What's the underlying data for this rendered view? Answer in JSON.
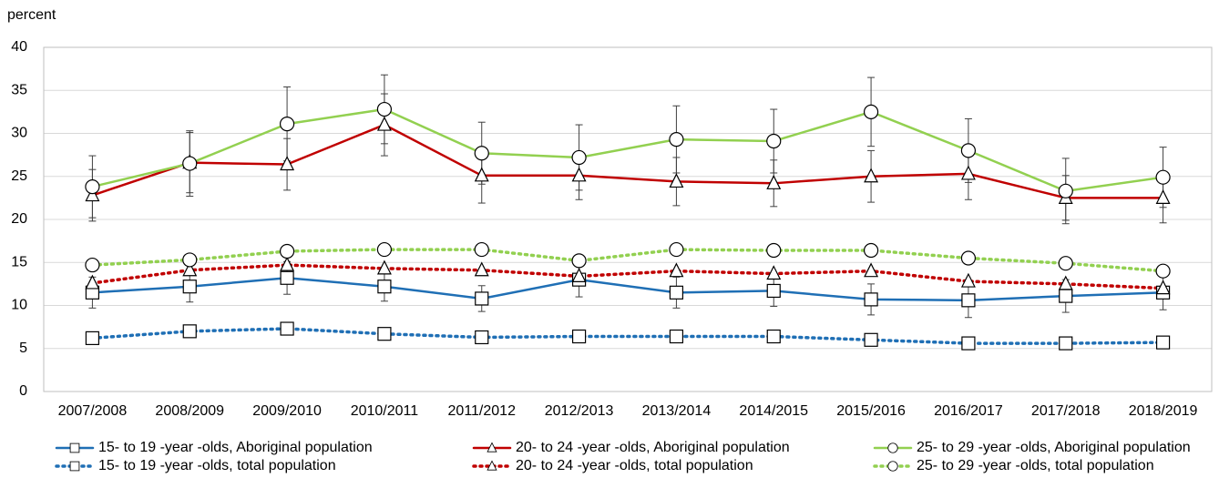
{
  "chart_data": {
    "type": "line",
    "y_label": "percent",
    "categories": [
      "2007/2008",
      "2008/2009",
      "2009/2010",
      "2010/2011",
      "2011/2012",
      "2012/2013",
      "2013/2014",
      "2014/2015",
      "2015/2016",
      "2016/2017",
      "2017/2018",
      "2018/2019"
    ],
    "ylim": [
      0,
      40
    ],
    "yticks": [
      0,
      5,
      10,
      15,
      20,
      25,
      30,
      35,
      40
    ],
    "grid": true,
    "series": [
      {
        "name": "15- to 19 -year -olds, Aboriginal population",
        "color": "#1f6fb5",
        "dash": "solid",
        "marker": "square",
        "values": [
          11.5,
          12.2,
          13.2,
          12.2,
          10.8,
          13.0,
          11.5,
          11.7,
          10.7,
          10.6,
          11.1,
          11.5
        ],
        "errors": [
          1.8,
          1.8,
          1.9,
          1.7,
          1.5,
          2.0,
          1.8,
          1.8,
          1.8,
          2.0,
          1.9,
          2.0
        ]
      },
      {
        "name": "20- to 24 -year -olds, Aboriginal population",
        "color": "#c00000",
        "dash": "solid",
        "marker": "triangle",
        "values": [
          22.8,
          26.6,
          26.4,
          31.0,
          25.1,
          25.1,
          24.4,
          24.2,
          25.0,
          25.3,
          22.5,
          22.5
        ],
        "errors": [
          3.0,
          3.5,
          3.0,
          3.6,
          3.2,
          2.8,
          2.8,
          2.7,
          3.0,
          3.0,
          2.6,
          2.9
        ]
      },
      {
        "name": "25- to 29 -year -olds, Aboriginal population",
        "color": "#92d050",
        "dash": "solid",
        "marker": "circle",
        "values": [
          23.8,
          26.5,
          31.1,
          32.8,
          27.7,
          27.2,
          29.3,
          29.1,
          32.5,
          28.0,
          23.3,
          24.9
        ],
        "errors": [
          3.6,
          3.8,
          4.3,
          4.0,
          3.6,
          3.8,
          3.9,
          3.7,
          4.0,
          3.7,
          3.8,
          3.5
        ]
      },
      {
        "name": "15- to 19 -year -olds, total population",
        "color": "#1f6fb5",
        "dash": "dotted",
        "marker": "square",
        "values": [
          6.2,
          7.0,
          7.3,
          6.7,
          6.3,
          6.4,
          6.4,
          6.4,
          6.0,
          5.6,
          5.6,
          5.7
        ]
      },
      {
        "name": "20- to 24 -year -olds, total population",
        "color": "#c00000",
        "dash": "dotted",
        "marker": "triangle",
        "values": [
          12.6,
          14.1,
          14.7,
          14.3,
          14.1,
          13.4,
          14.0,
          13.7,
          14.0,
          12.8,
          12.5,
          12.0
        ]
      },
      {
        "name": "25- to 29 -year -olds, total population",
        "color": "#92d050",
        "dash": "dotted",
        "marker": "circle",
        "values": [
          14.7,
          15.3,
          16.3,
          16.5,
          16.5,
          15.2,
          16.5,
          16.4,
          16.4,
          15.5,
          14.9,
          14.0
        ]
      }
    ]
  }
}
